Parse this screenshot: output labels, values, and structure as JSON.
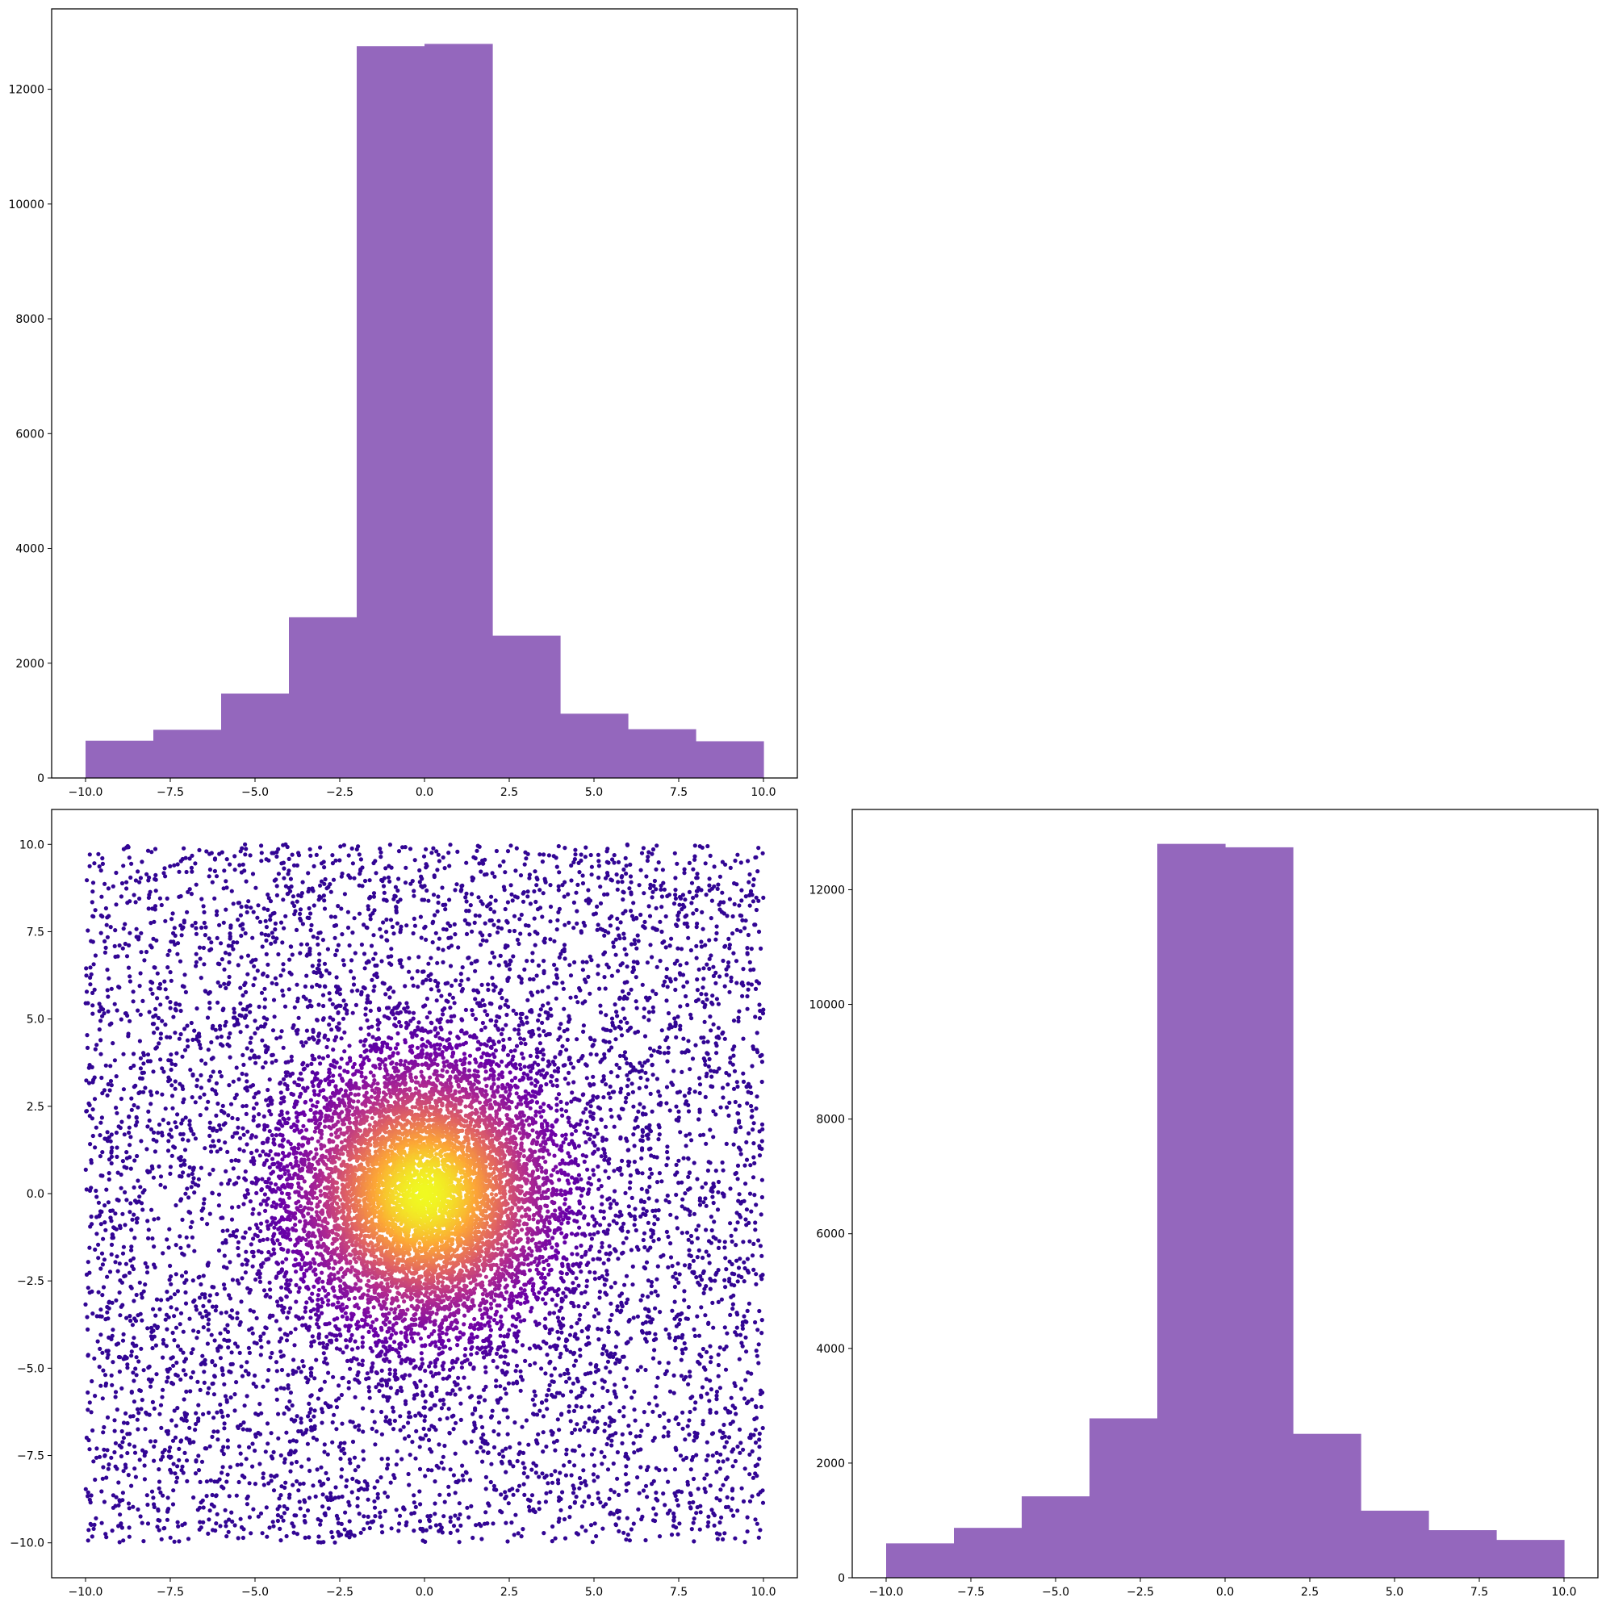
{
  "chart_data": [
    {
      "id": "hist_x",
      "type": "bar",
      "title": "",
      "xlabel": "",
      "ylabel": "",
      "bin_edges": [
        -10,
        -8,
        -6,
        -4,
        -2,
        0,
        2,
        4,
        6,
        8,
        10
      ],
      "values": [
        650,
        840,
        1470,
        2800,
        12750,
        12790,
        2480,
        1120,
        850,
        640
      ],
      "color": "#9467bd",
      "xlim": [
        -11,
        11
      ],
      "ylim": [
        0,
        13400
      ],
      "xticks": [
        -10,
        -7.5,
        -5,
        -2.5,
        0,
        2.5,
        5,
        7.5,
        10
      ],
      "xtick_labels": [
        "−10.0",
        "−7.5",
        "−5.0",
        "−2.5",
        "0.0",
        "2.5",
        "5.0",
        "7.5",
        "10.0"
      ],
      "yticks": [
        0,
        2000,
        4000,
        6000,
        8000,
        10000,
        12000
      ],
      "ytick_labels": [
        "0",
        "2000",
        "4000",
        "6000",
        "8000",
        "10000",
        "12000"
      ]
    },
    {
      "id": "scatter_xy",
      "type": "scatter",
      "title": "",
      "xlabel": "",
      "ylabel": "",
      "distribution": "mixture of uniform on [-10,10]^2 and centered normal",
      "colormap": "plasma",
      "colormap_stops": [
        "#0d0887",
        "#6a00a8",
        "#b12a90",
        "#e16462",
        "#fca636",
        "#f0f921"
      ],
      "point_color_meaning": "density (highest at center)",
      "xlim": [
        -11,
        11
      ],
      "ylim": [
        -11,
        11
      ],
      "xticks": [
        -10,
        -7.5,
        -5,
        -2.5,
        0,
        2.5,
        5,
        7.5,
        10
      ],
      "xtick_labels": [
        "−10.0",
        "−7.5",
        "−5.0",
        "−2.5",
        "0.0",
        "2.5",
        "5.0",
        "7.5",
        "10.0"
      ],
      "yticks": [
        10,
        7.5,
        5,
        2.5,
        0,
        -2.5,
        -5,
        -7.5,
        -10
      ],
      "ytick_labels": [
        "10.0",
        "7.5",
        "5.0",
        "2.5",
        "0.0",
        "−2.5",
        "−5.0",
        "−7.5",
        "−10.0"
      ]
    },
    {
      "id": "hist_y",
      "type": "bar",
      "title": "",
      "xlabel": "",
      "ylabel": "",
      "bin_edges": [
        -10,
        -8,
        -6,
        -4,
        -2,
        0,
        2,
        4,
        6,
        8,
        10
      ],
      "values": [
        600,
        870,
        1420,
        2780,
        12800,
        12740,
        2510,
        1170,
        830,
        660
      ],
      "color": "#9467bd",
      "xlim": [
        -11,
        11
      ],
      "ylim": [
        0,
        13400
      ],
      "xticks": [
        -10,
        -7.5,
        -5,
        -2.5,
        0,
        2.5,
        5,
        7.5,
        10
      ],
      "xtick_labels": [
        "−10.0",
        "−7.5",
        "−5.0",
        "−2.5",
        "0.0",
        "2.5",
        "5.0",
        "7.5",
        "10.0"
      ],
      "yticks": [
        0,
        2000,
        4000,
        6000,
        8000,
        10000,
        12000
      ],
      "ytick_labels": [
        "0",
        "2000",
        "4000",
        "6000",
        "8000",
        "10000",
        "12000"
      ]
    }
  ]
}
